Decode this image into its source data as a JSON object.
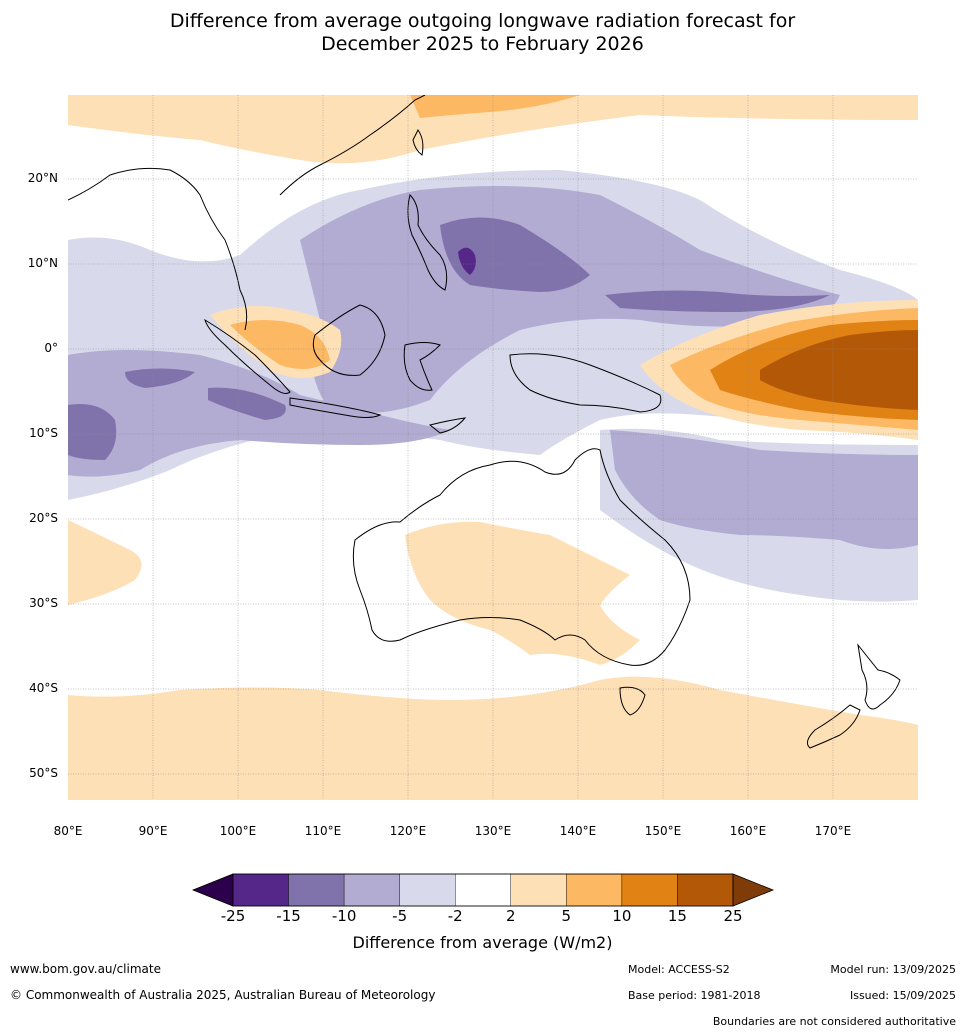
{
  "title_line1": "Difference from average outgoing longwave radiation forecast for",
  "title_line2": "December 2025 to February 2026",
  "lat_labels": [
    "20°N",
    "10°N",
    "0°",
    "10°S",
    "20°S",
    "30°S",
    "40°S",
    "50°S"
  ],
  "lon_labels": [
    "80°E",
    "90°E",
    "100°E",
    "110°E",
    "120°E",
    "130°E",
    "140°E",
    "150°E",
    "160°E",
    "170°E"
  ],
  "colorbar": {
    "ticks": [
      "-25",
      "-15",
      "-10",
      "-5",
      "-2",
      "2",
      "5",
      "10",
      "15",
      "25"
    ],
    "colors": [
      "#2d004b",
      "#542788",
      "#8073ac",
      "#b2abd2",
      "#d8daeb",
      "#ffffff",
      "#fee0b6",
      "#fdb863",
      "#e08214",
      "#b35806",
      "#7f3b08"
    ],
    "label": "Difference from average (W/m2)"
  },
  "footer": {
    "website": "www.bom.gov.au/climate",
    "copyright": "© Commonwealth of Australia 2025, Australian Bureau of Meteorology",
    "model": "Model: ACCESS-S2",
    "base_period": "Base period: 1981-2018",
    "model_run": "Model run: 13/09/2025",
    "issued": "Issued: 15/09/2025",
    "disclaimer": "Boundaries are not considered authoritative"
  }
}
